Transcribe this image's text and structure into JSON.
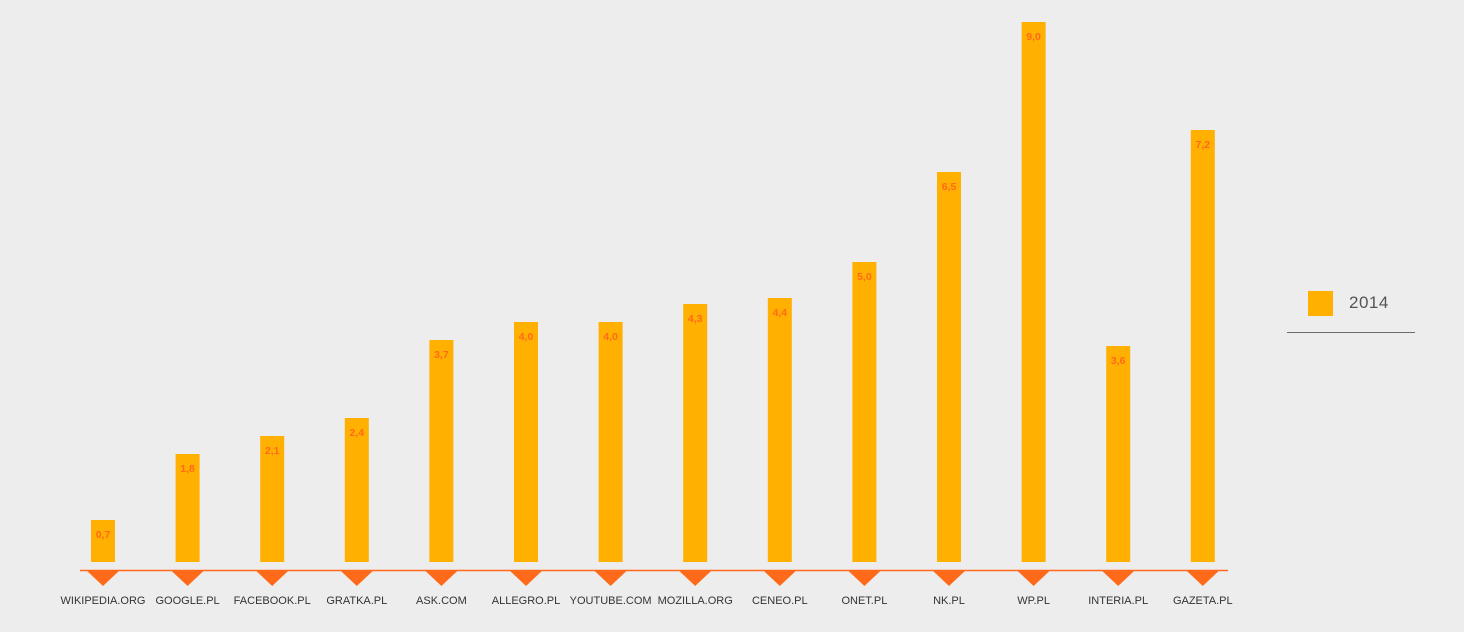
{
  "colors": {
    "background": "#ededed",
    "bar": "#ffb000",
    "value_label": "#ff6a1a",
    "axis": "#ff6a1a",
    "marker": "#ff6a1a",
    "category_label": "#333333"
  },
  "chart_data": {
    "type": "bar",
    "title": "",
    "xlabel": "",
    "ylabel": "",
    "categories": [
      "WIKIPEDIA.ORG",
      "GOOGLE.PL",
      "FACEBOOK.PL",
      "GRATKA.PL",
      "ASK.COM",
      "ALLEGRO.PL",
      "YOUTUBE.COM",
      "MOZILLA.ORG",
      "CENEO.PL",
      "ONET.PL",
      "NK.PL",
      "WP.PL",
      "INTERIA.PL",
      "GAZETA.PL"
    ],
    "series": [
      {
        "name": "2014",
        "values": [
          0.7,
          1.8,
          2.1,
          2.4,
          3.7,
          4.0,
          4.0,
          4.3,
          4.4,
          5.0,
          6.5,
          9.0,
          3.6,
          7.2
        ],
        "labels": [
          "0,7",
          "1,8",
          "2,1",
          "2,4",
          "3,7",
          "4,0",
          "4,0",
          "4,3",
          "4,4",
          "5,0",
          "6,5",
          "9,0",
          "3,6",
          "7,2"
        ]
      }
    ],
    "ylim": [
      0,
      9
    ],
    "grid": false,
    "legend_position": "right"
  }
}
